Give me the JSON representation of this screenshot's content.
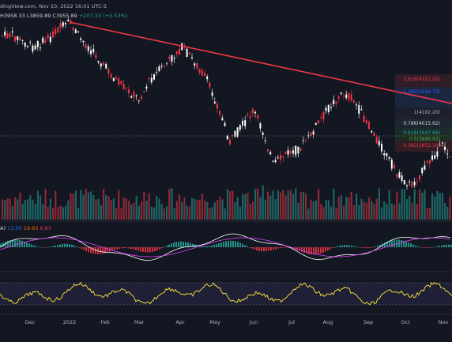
{
  "header": {
    "source_line": "dingView.com, Nov 10, 2022 16:01 UTC-5",
    "ohlc": "H3958.33  L3859.89  C3955.89  +207.33 (+5.53%)",
    "ohlc_left": "H3958.33 L3859.89 C3955.89",
    "ohlc_change": "+207.33 (+5.53%)"
  },
  "macd_label": {
    "prefix": "A)",
    "v1": "13.00",
    "v2": "19.63",
    "v3": "6.63"
  },
  "fib_levels": [
    {
      "label": "1.618(4352.20)",
      "color": "#f23645"
    },
    {
      "label": "1.382(4256.73)",
      "color": "#2962ff"
    },
    {
      "label": "1(4102.20)",
      "color": "#b2b5be"
    },
    {
      "label": "0.786(4015.62)",
      "color": "#d1d4dc"
    },
    {
      "label": "0.618(3947.66)",
      "color": "#26a69a"
    },
    {
      "label": "0.5(3899.93)",
      "color": "#4caf50"
    },
    {
      "label": "0.382(3852.19)",
      "color": "#f23645"
    }
  ],
  "x_axis": [
    "Dec",
    "2022",
    "Feb",
    "Mar",
    "Apr",
    "May",
    "Jun",
    "Jul",
    "Aug",
    "Sep",
    "Oct",
    "Nov"
  ],
  "colors": {
    "background": "#131722",
    "up": "#ffffff",
    "down": "#f23645",
    "trendline": "#f23645",
    "volume_up": "#26a69a",
    "volume_down": "#f23645",
    "macd_line": "#ffffff",
    "signal_line": "#e040fb",
    "rsi_line": "#ffeb3b"
  }
}
